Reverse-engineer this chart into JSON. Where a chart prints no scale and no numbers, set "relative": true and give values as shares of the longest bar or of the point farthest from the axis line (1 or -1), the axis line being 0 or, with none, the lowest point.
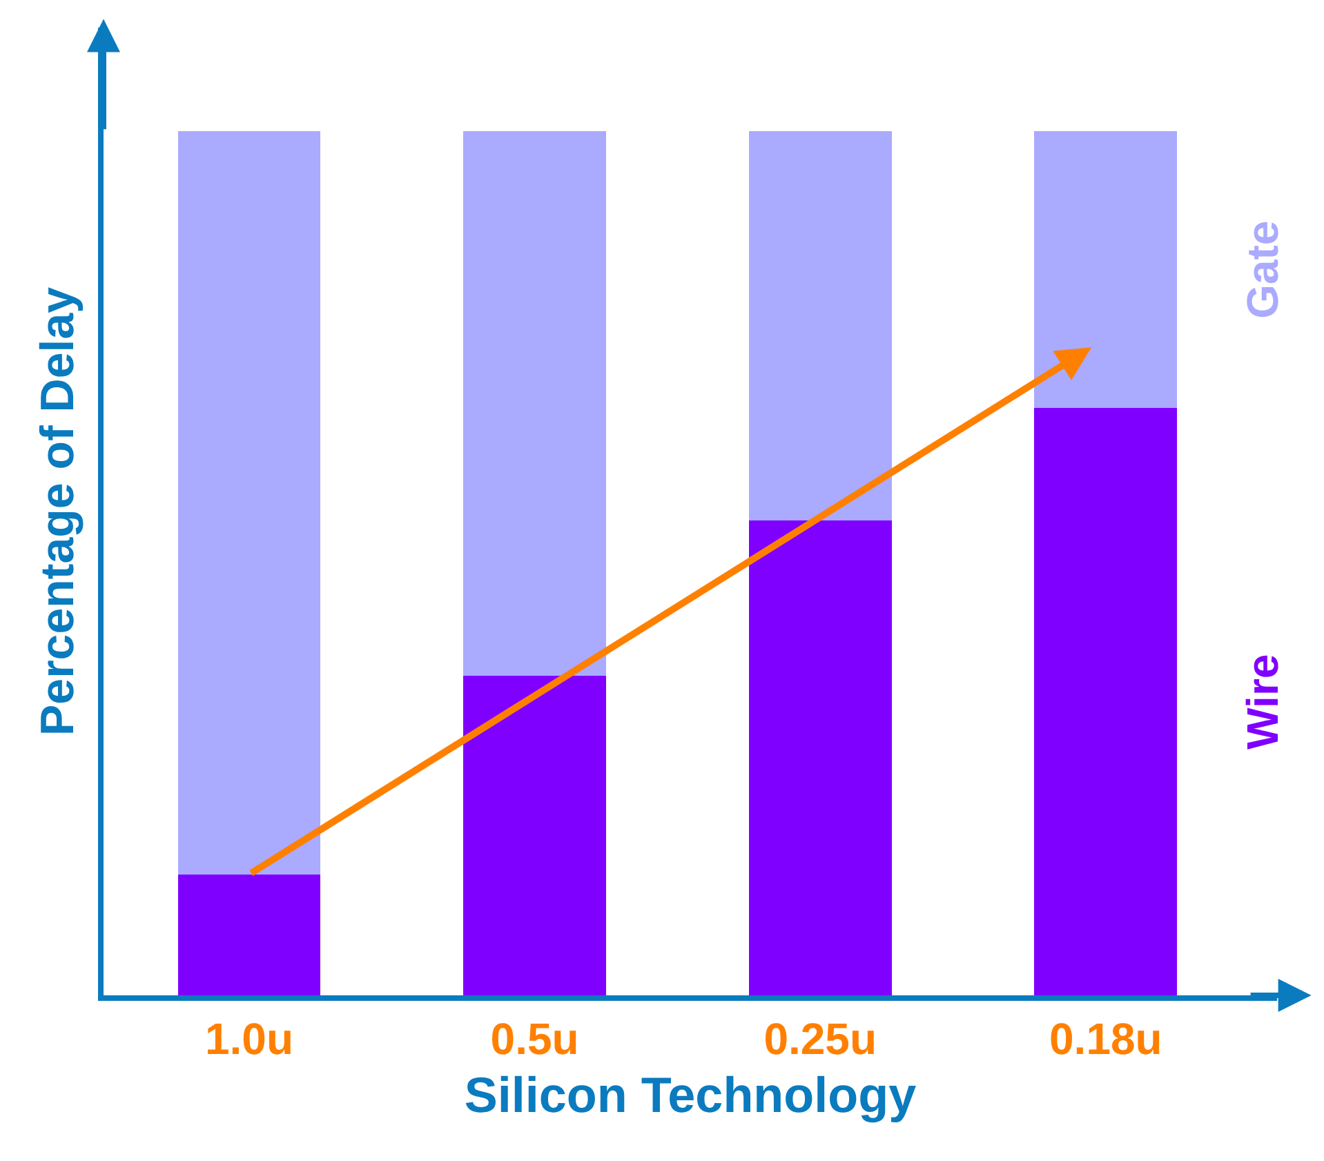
{
  "chart_data": {
    "type": "bar",
    "stacked": true,
    "relative": true,
    "legend": false,
    "xlabel": "Silicon Technology",
    "ylabel": "Percentage of Delay",
    "categories": [
      "1.0u",
      "0.5u",
      "0.25u",
      "0.18u"
    ],
    "series": [
      {
        "name": "Wire",
        "color": "#8000ff",
        "values": [
          0.14,
          0.37,
          0.55,
          0.68
        ]
      },
      {
        "name": "Gate",
        "color": "#aaaaff",
        "values": [
          0.86,
          0.63,
          0.45,
          0.32
        ]
      }
    ]
  }
}
